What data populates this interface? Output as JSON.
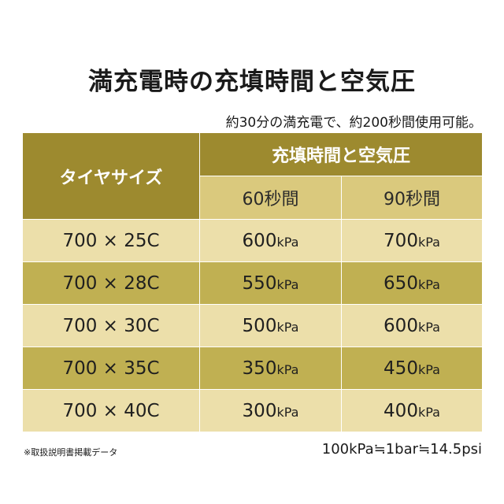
{
  "title": "満充電時の充填時間と空気圧",
  "subtitle": "約30分の満充電で、約200秒間使用可能。",
  "table": {
    "col_size": "タイヤサイズ",
    "col_group": "充填時間と空気圧",
    "col_t1": "60秒間",
    "col_t2": "90秒間",
    "unit": "kPa",
    "rows": [
      {
        "size": "700 × 25C",
        "p60": "600",
        "p90": "700"
      },
      {
        "size": "700 × 28C",
        "p60": "550",
        "p90": "650"
      },
      {
        "size": "700 × 30C",
        "p60": "500",
        "p90": "600"
      },
      {
        "size": "700 × 35C",
        "p60": "350",
        "p90": "450"
      },
      {
        "size": "700 × 40C",
        "p60": "300",
        "p90": "400"
      }
    ]
  },
  "note": "※取扱説明書掲載データ",
  "conversion": "100kPa≒1bar≒14.5psi",
  "colors": {
    "header_dark": "#9d8a2f",
    "header_light": "#dac97d",
    "row_light": "#ecdfaa",
    "row_dark": "#c0b052"
  }
}
